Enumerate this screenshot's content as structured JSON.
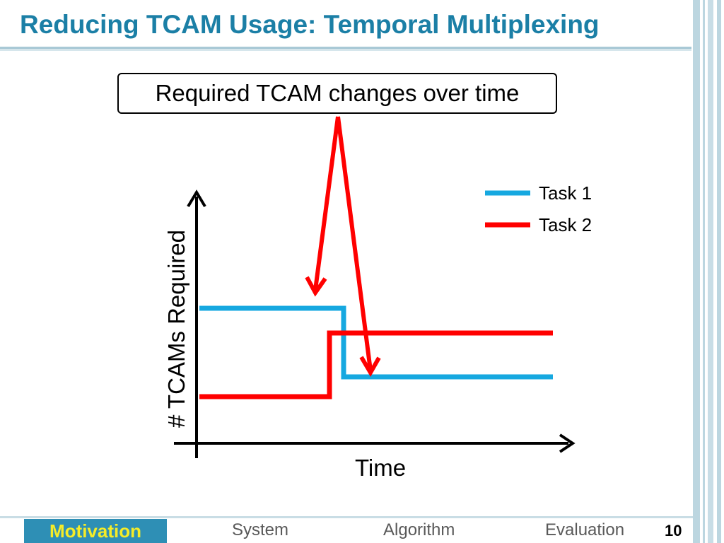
{
  "slide": {
    "title": "Reducing TCAM Usage: Temporal Multiplexing",
    "callout": "Required TCAM changes over time",
    "page_number": "10"
  },
  "diagram": {
    "y_axis_label": "# TCAMs Required",
    "x_axis_label": "Time",
    "legend": [
      {
        "label": "Task 1",
        "color": "#16a8e0"
      },
      {
        "label": "Task 2",
        "color": "#ff0000"
      }
    ],
    "arrow_color": "#ff0000",
    "axis_color": "#000000"
  },
  "footer": {
    "nav": [
      {
        "label": "Motivation",
        "active": true
      },
      {
        "label": "System",
        "active": false
      },
      {
        "label": "Algorithm",
        "active": false
      },
      {
        "label": "Evaluation",
        "active": false
      }
    ]
  }
}
